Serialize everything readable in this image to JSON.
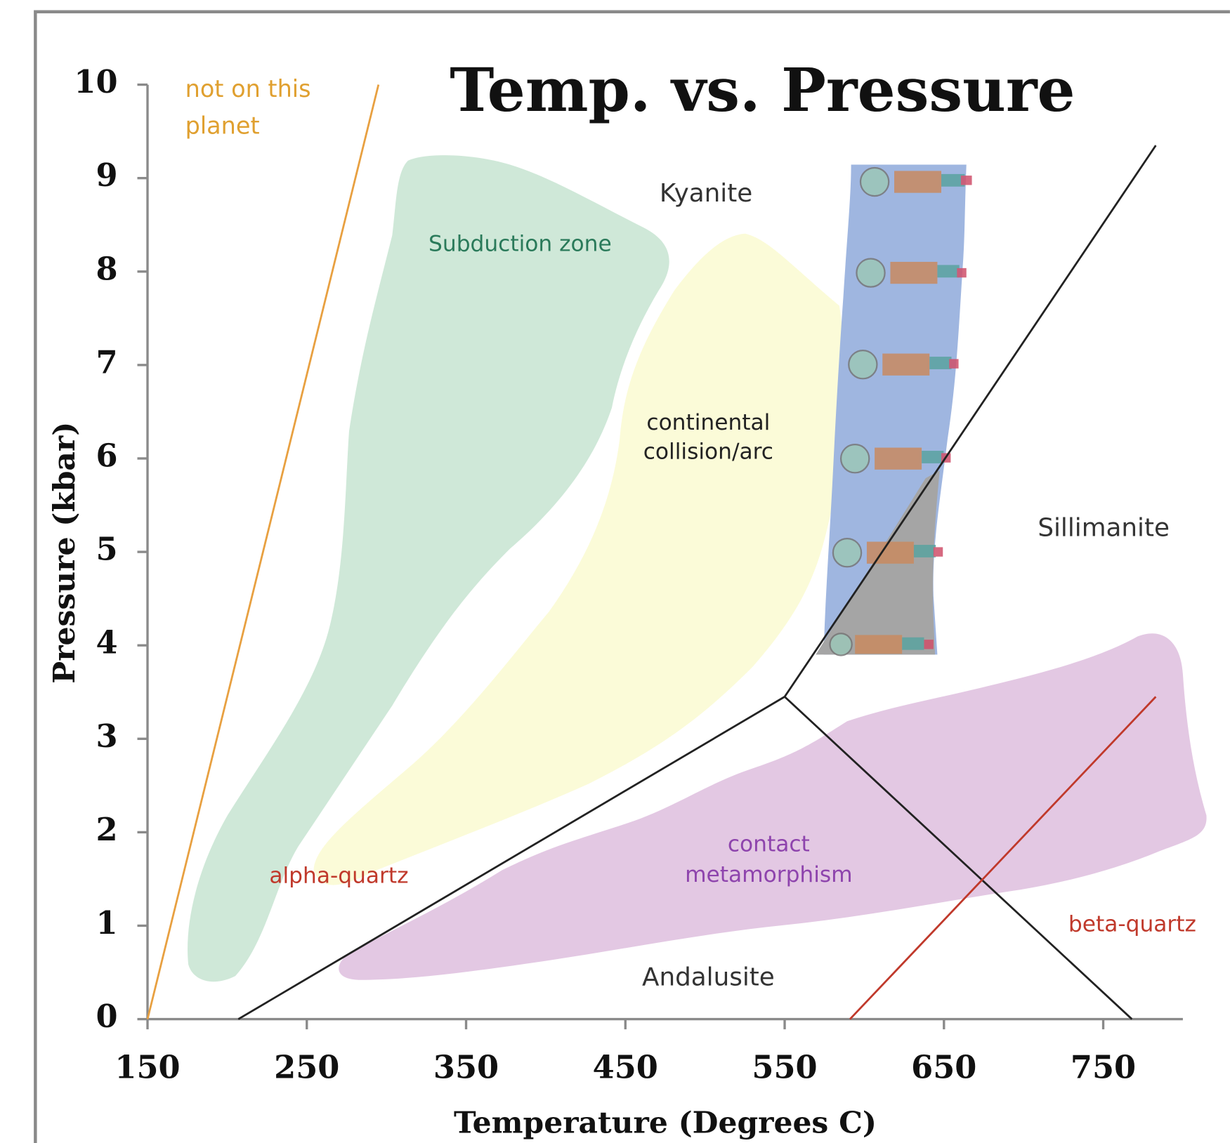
{
  "chart_data": {
    "type": "line",
    "title": "Temp. vs. Pressure",
    "x_label": "Temperature (Degrees C)",
    "y_label": "Pressure (kbar)",
    "xlim": [
      150,
      800
    ],
    "ylim": [
      0,
      10
    ],
    "xticks": [
      150,
      250,
      350,
      450,
      550,
      650,
      750
    ],
    "yticks": [
      0,
      1,
      2,
      3,
      4,
      5,
      6,
      7,
      8,
      9,
      10
    ],
    "series": [
      {
        "color": "#e8a040",
        "x": [
          150,
          295
        ],
        "values": [
          0,
          10
        ]
      },
      {
        "color": "#222222",
        "x": [
          207,
          550
        ],
        "values": [
          0,
          3.45
        ]
      },
      {
        "color": "#222222",
        "x": [
          550,
          783
        ],
        "values": [
          3.45,
          9.35
        ]
      },
      {
        "color": "#222222",
        "x": [
          550,
          768
        ],
        "values": [
          3.45,
          0
        ]
      },
      {
        "color": "#c0392b",
        "x": [
          591,
          783
        ],
        "values": [
          0,
          3.45
        ]
      }
    ],
    "annotations": [
      {
        "lines": [
          "not on this",
          "planet"
        ],
        "color": "#e0a030"
      },
      {
        "lines": [
          "Kyanite"
        ],
        "color": "#333333"
      },
      {
        "lines": [
          "Subduction zone"
        ],
        "color": "#2a7a5a"
      },
      {
        "lines": [
          "continental",
          "collision/arc"
        ],
        "color": "#222222"
      },
      {
        "lines": [
          "Sillimanite"
        ],
        "color": "#333333"
      },
      {
        "lines": [
          "alpha-quartz"
        ],
        "color": "#c0392b"
      },
      {
        "lines": [
          "contact",
          "metamorphism"
        ],
        "color": "#8e44ad"
      },
      {
        "lines": [
          "beta-quartz"
        ],
        "color": "#c0392b"
      },
      {
        "lines": [
          "Andalusite"
        ],
        "color": "#333333"
      }
    ]
  }
}
